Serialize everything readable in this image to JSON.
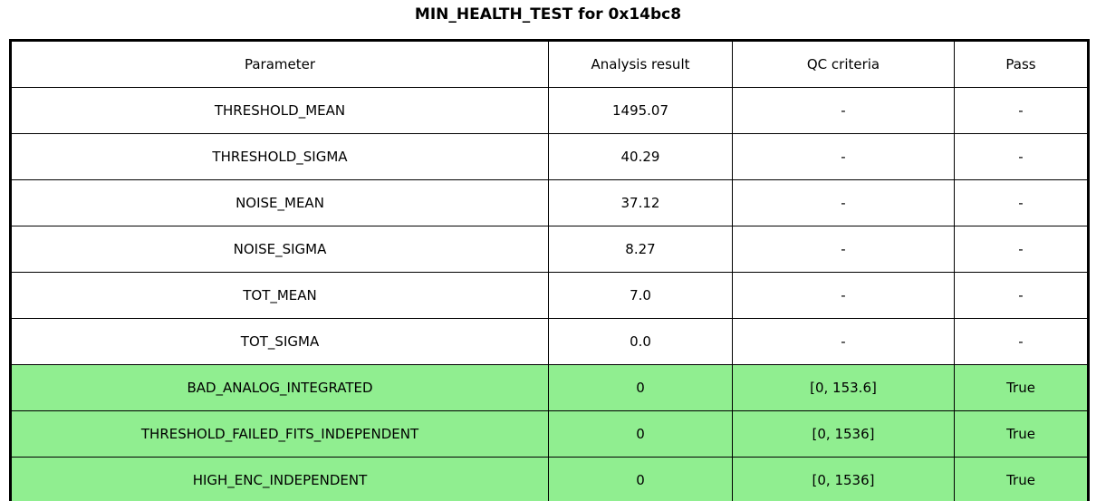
{
  "title": "MIN_HEALTH_TEST for 0x14bc8",
  "colors": {
    "background": "#ffffff",
    "border": "#000000",
    "text": "#000000",
    "pass_row_bg": "#90EE90"
  },
  "chart_data": {
    "type": "table",
    "title": "MIN_HEALTH_TEST for 0x14bc8",
    "columns": [
      "Parameter",
      "Analysis result",
      "QC criteria",
      "Pass"
    ],
    "rows": [
      [
        "THRESHOLD_MEAN",
        "1495.07",
        "-",
        "-"
      ],
      [
        "THRESHOLD_SIGMA",
        "40.29",
        "-",
        "-"
      ],
      [
        "NOISE_MEAN",
        "37.12",
        "-",
        "-"
      ],
      [
        "NOISE_SIGMA",
        "8.27",
        "-",
        "-"
      ],
      [
        "TOT_MEAN",
        "7.0",
        "-",
        "-"
      ],
      [
        "TOT_SIGMA",
        "0.0",
        "-",
        "-"
      ],
      [
        "BAD_ANALOG_INTEGRATED",
        "0",
        "[0, 153.6]",
        "True"
      ],
      [
        "THRESHOLD_FAILED_FITS_INDEPENDENT",
        "0",
        "[0, 1536]",
        "True"
      ],
      [
        "HIGH_ENC_INDEPENDENT",
        "0",
        "[0, 1536]",
        "True"
      ]
    ],
    "highlighted_rows": [
      6,
      7,
      8
    ],
    "highlight_color": "#90EE90",
    "legend_position": "none",
    "grid": true
  }
}
